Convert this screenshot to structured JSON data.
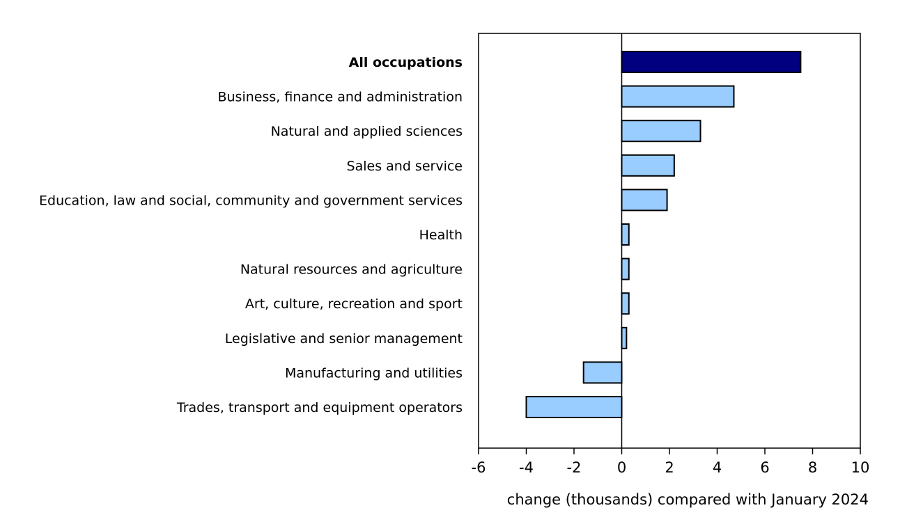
{
  "chart_data": {
    "type": "bar",
    "orientation": "horizontal",
    "title": "",
    "xlabel": "change (thousands) compared with January 2024",
    "ylabel": "",
    "xlim": [
      -6,
      10
    ],
    "xticks": [
      -6,
      -4,
      -2,
      0,
      2,
      4,
      6,
      8,
      10
    ],
    "grid": false,
    "categories": [
      "All occupations",
      "Business, finance and administration",
      "Natural and applied sciences",
      "Sales and service",
      "Education, law and social, community and government services",
      "Health",
      "Natural resources and agriculture",
      "Art, culture, recreation and sport",
      "Legislative and senior management",
      "Manufacturing and utilities",
      "Trades, transport and equipment operators"
    ],
    "values": [
      7.5,
      4.7,
      3.3,
      2.2,
      1.9,
      0.3,
      0.3,
      0.3,
      0.2,
      -1.6,
      -4.0
    ],
    "highlight_category": "All occupations",
    "colors": {
      "highlight": "#000080",
      "default": "#99ccff",
      "outline": "#000000"
    }
  }
}
